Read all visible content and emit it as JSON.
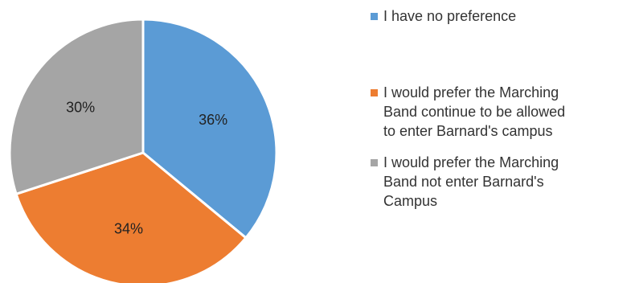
{
  "chart_data": {
    "type": "pie",
    "title": "",
    "start_angle_deg": 0,
    "direction": "clockwise",
    "slices": [
      {
        "label": "I have no preference",
        "value": 36,
        "display": "36%",
        "color": "#5b9bd5",
        "legend_lines": [
          "I have no preference"
        ]
      },
      {
        "label": "I would prefer the Marching Band continue to be allowed to enter Barnard's campus",
        "value": 34,
        "display": "34%",
        "color": "#ed7d31",
        "legend_lines": [
          "I would prefer the Marching",
          "Band continue to be allowed",
          "to enter Barnard's campus"
        ]
      },
      {
        "label": "I would prefer the Marching Band not enter Barnard's Campus",
        "value": 30,
        "display": "30%",
        "color": "#a5a5a5",
        "legend_lines": [
          "I would prefer the Marching",
          "Band not enter Barnard's",
          "Campus"
        ]
      }
    ],
    "legend_position": "right",
    "slice_border_color": "#ffffff"
  }
}
